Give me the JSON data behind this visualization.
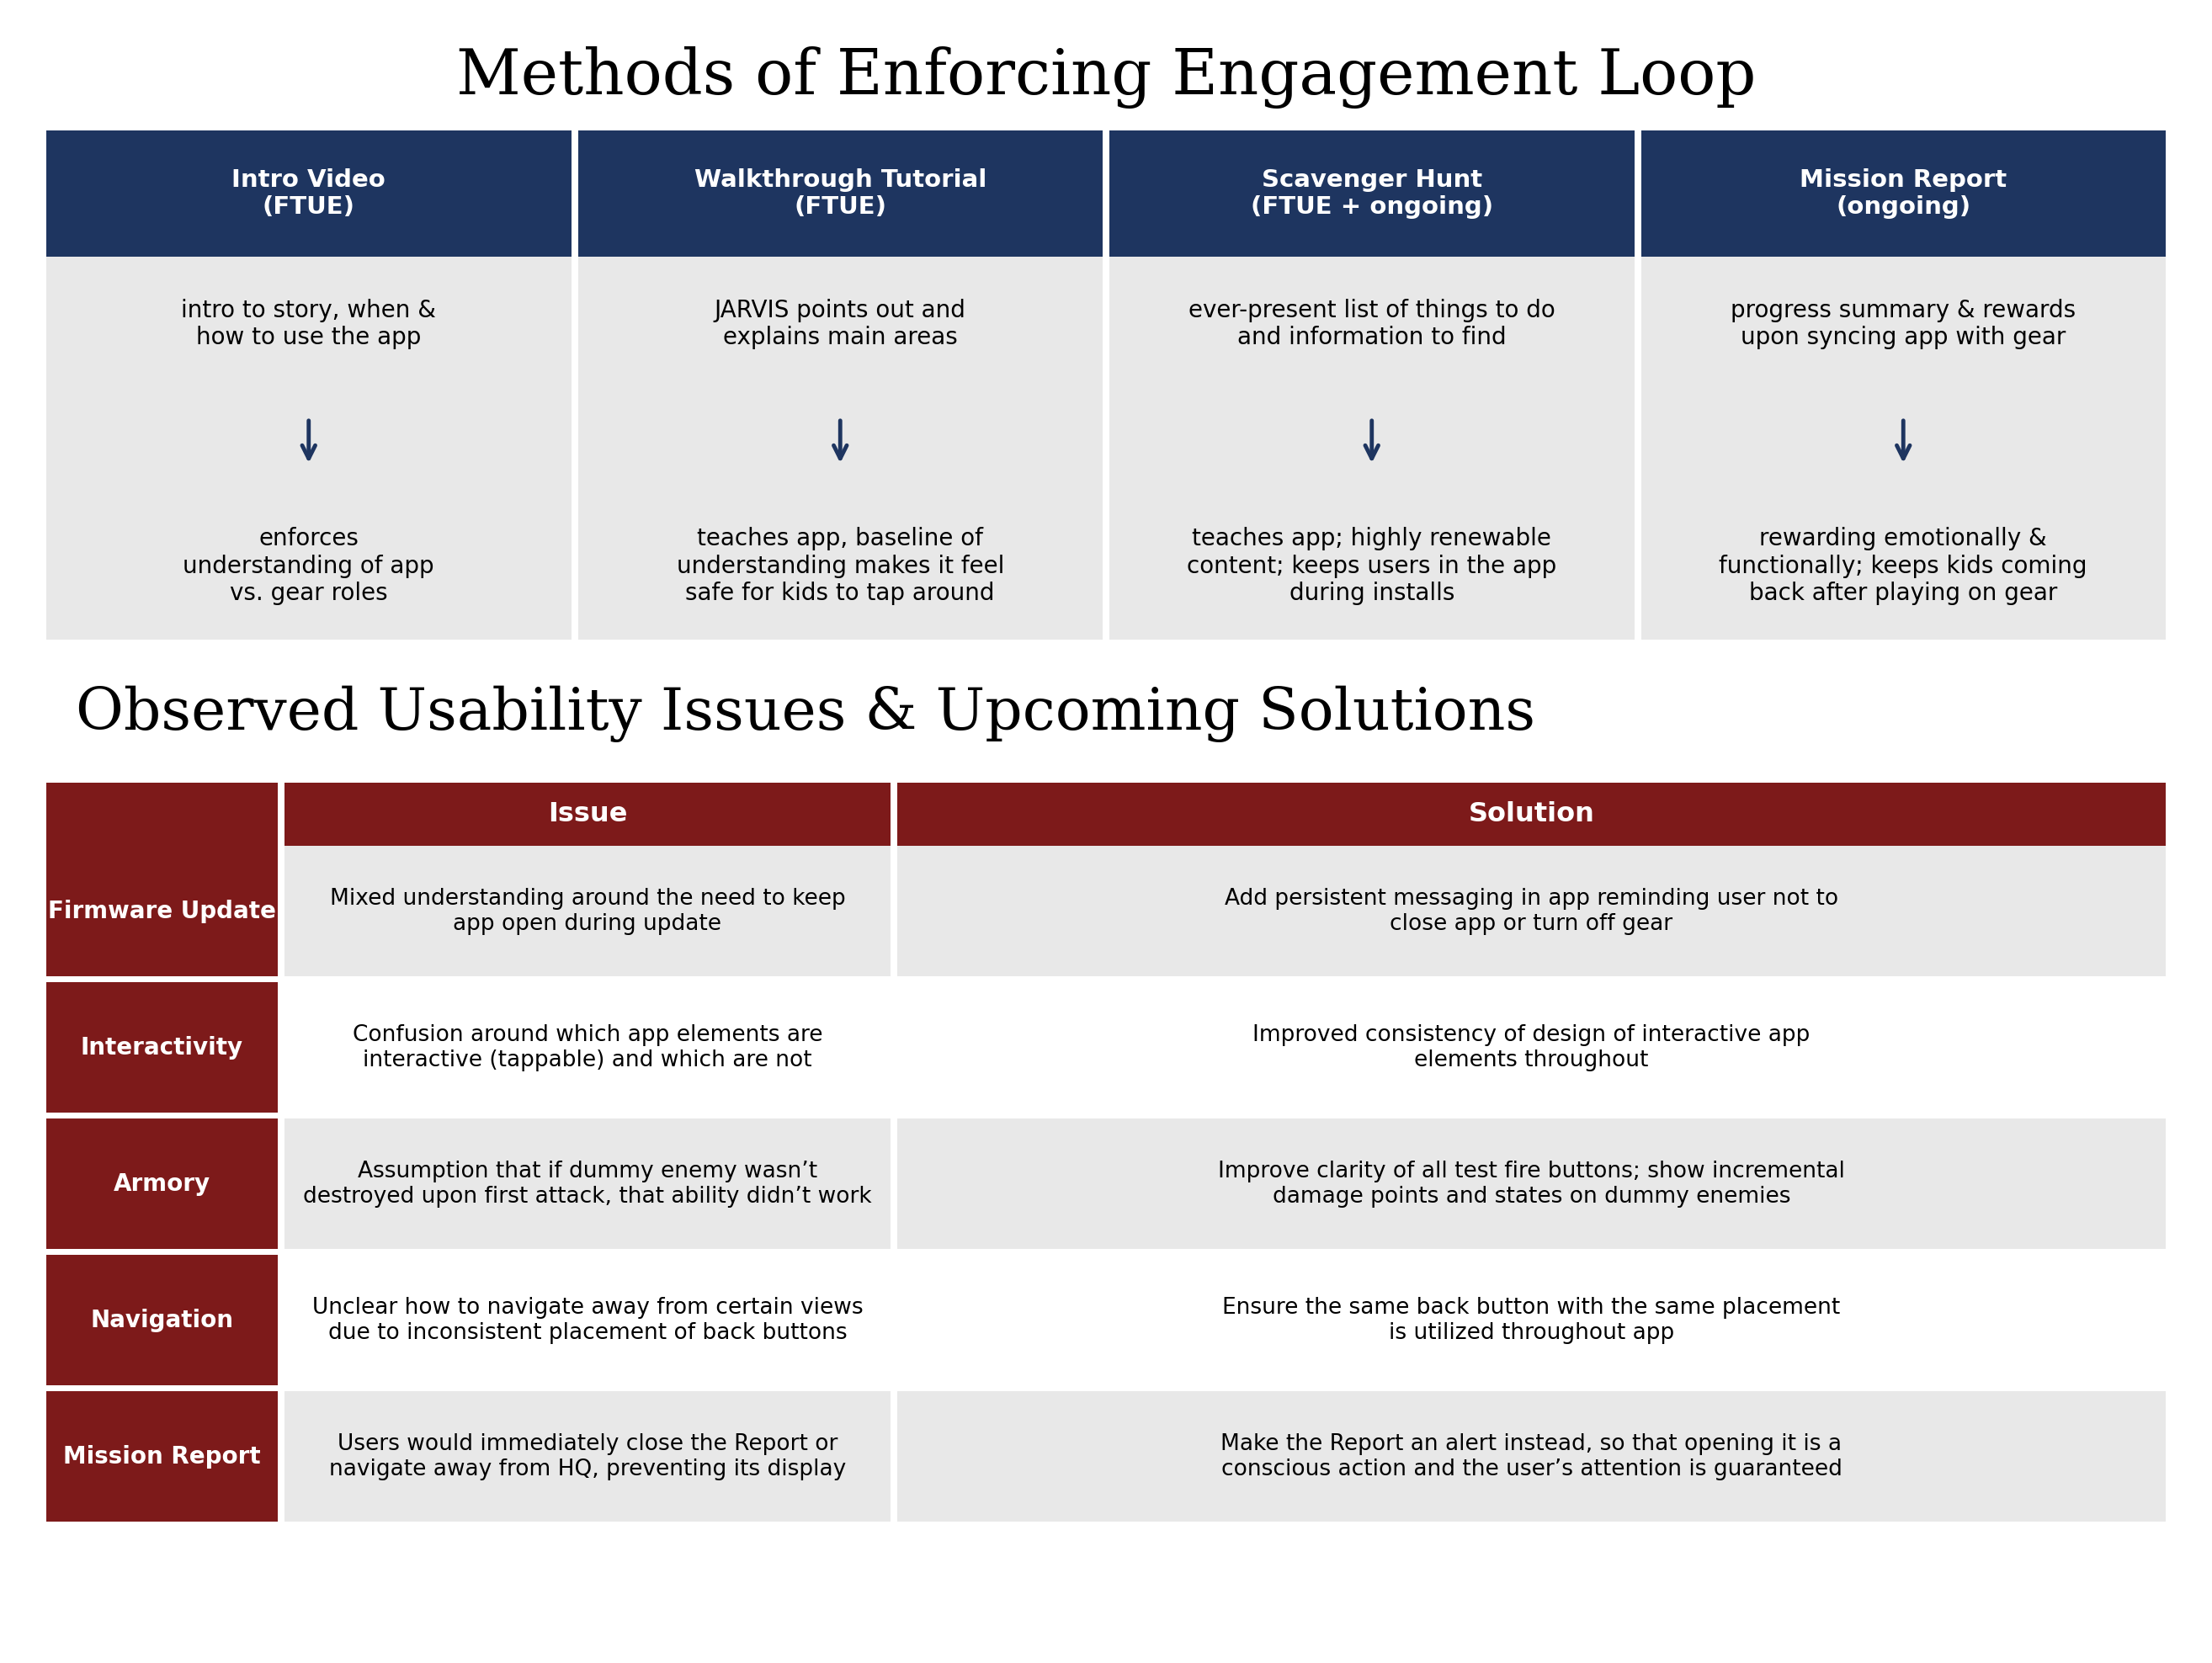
{
  "title1": "Methods of Enforcing Engagement Loop",
  "title2": "Observed Usability Issues & Upcoming Solutions",
  "navy": "#1e3560",
  "dark_red": "#7d1a1a",
  "light_gray": "#e8e8e8",
  "white": "#ffffff",
  "black": "#000000",
  "top_headers": [
    "Intro Video\n(FTUE)",
    "Walkthrough Tutorial\n(FTUE)",
    "Scavenger Hunt\n(FTUE + ongoing)",
    "Mission Report\n(ongoing)"
  ],
  "top_row1": [
    "intro to story, when &\nhow to use the app",
    "JARVIS points out and\nexplains main areas",
    "ever-present list of things to do\nand information to find",
    "progress summary & rewards\nupon syncing app with gear"
  ],
  "top_row2": [
    "enforces\nunderstanding of app\nvs. gear roles",
    "teaches app, baseline of\nunderstanding makes it feel\nsafe for kids to tap around",
    "teaches app; highly renewable\ncontent; keeps users in the app\nduring installs",
    "rewarding emotionally &\nfunctionally; keeps kids coming\nback after playing on gear"
  ],
  "bottom_row_labels": [
    "Firmware Update",
    "Interactivity",
    "Armory",
    "Navigation",
    "Mission Report"
  ],
  "bottom_issues": [
    "Mixed understanding around the need to keep\napp open during update",
    "Confusion around which app elements are\ninteractive (tappable) and which are not",
    "Assumption that if dummy enemy wasn’t\ndestroyed upon first attack, that ability didn’t work",
    "Unclear how to navigate away from certain views\ndue to inconsistent placement of back buttons",
    "Users would immediately close the Report or\nnavigate away from HQ, preventing its display"
  ],
  "bottom_solutions": [
    "Add persistent messaging in app reminding user not to\nclose app or turn off gear",
    "Improved consistency of design of interactive app\nelements throughout",
    "Improve clarity of all test fire buttons; show incremental\ndamage points and states on dummy enemies",
    "Ensure the same back button with the same placement\nis utilized throughout app",
    "Make the Report an alert instead, so that opening it is a\nconscious action and the user’s attention is guaranteed"
  ]
}
